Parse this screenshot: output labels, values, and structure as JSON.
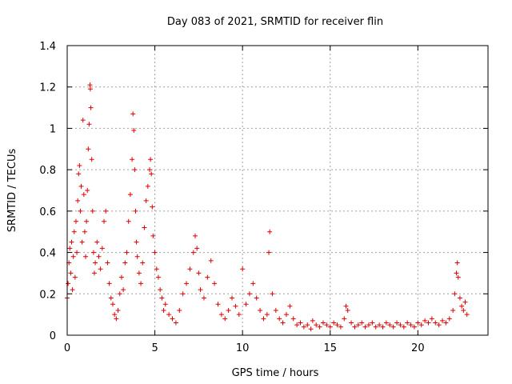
{
  "chart_data": {
    "type": "scatter",
    "title": "Day 083 of 2021, SRMTID for receiver flin",
    "xlabel": "GPS time / hours",
    "ylabel": "SRMTID / TECUs",
    "xlim": [
      0,
      24
    ],
    "ylim": [
      0,
      1.4
    ],
    "xticks": [
      0,
      5,
      10,
      15,
      20
    ],
    "xtick_labels": [
      "0",
      "5",
      "10",
      "15",
      "20"
    ],
    "yticks": [
      0,
      0.2,
      0.4,
      0.6,
      0.8,
      1.0,
      1.2,
      1.4
    ],
    "ytick_labels": [
      "0",
      "0.2",
      "0.4",
      "0.6",
      "0.8",
      "1",
      "1.2",
      "1.4"
    ],
    "grid": true,
    "marker": "+",
    "marker_color": "#e00000",
    "series": [
      {
        "name": "SRMTID",
        "points": [
          [
            0.0,
            0.18
          ],
          [
            0.05,
            0.25
          ],
          [
            0.1,
            0.35
          ],
          [
            0.15,
            0.42
          ],
          [
            0.2,
            0.3
          ],
          [
            0.25,
            0.45
          ],
          [
            0.3,
            0.22
          ],
          [
            0.35,
            0.38
          ],
          [
            0.4,
            0.5
          ],
          [
            0.45,
            0.28
          ],
          [
            0.5,
            0.55
          ],
          [
            0.55,
            0.4
          ],
          [
            0.6,
            0.65
          ],
          [
            0.65,
            0.78
          ],
          [
            0.7,
            0.82
          ],
          [
            0.75,
            0.6
          ],
          [
            0.8,
            0.72
          ],
          [
            0.85,
            0.45
          ],
          [
            0.9,
            1.04
          ],
          [
            0.95,
            0.68
          ],
          [
            1.0,
            0.5
          ],
          [
            1.05,
            0.38
          ],
          [
            1.1,
            0.55
          ],
          [
            1.15,
            0.7
          ],
          [
            1.2,
            0.9
          ],
          [
            1.25,
            1.02
          ],
          [
            1.3,
            1.21
          ],
          [
            1.32,
            1.19
          ],
          [
            1.35,
            1.1
          ],
          [
            1.4,
            0.85
          ],
          [
            1.45,
            0.6
          ],
          [
            1.5,
            0.4
          ],
          [
            1.55,
            0.3
          ],
          [
            1.6,
            0.35
          ],
          [
            1.7,
            0.45
          ],
          [
            1.8,
            0.38
          ],
          [
            1.9,
            0.32
          ],
          [
            2.0,
            0.42
          ],
          [
            2.1,
            0.55
          ],
          [
            2.2,
            0.6
          ],
          [
            2.3,
            0.35
          ],
          [
            2.4,
            0.25
          ],
          [
            2.5,
            0.18
          ],
          [
            2.6,
            0.15
          ],
          [
            2.7,
            0.1
          ],
          [
            2.8,
            0.08
          ],
          [
            2.9,
            0.12
          ],
          [
            3.0,
            0.2
          ],
          [
            3.1,
            0.28
          ],
          [
            3.2,
            0.22
          ],
          [
            3.3,
            0.35
          ],
          [
            3.4,
            0.4
          ],
          [
            3.5,
            0.55
          ],
          [
            3.6,
            0.68
          ],
          [
            3.7,
            0.85
          ],
          [
            3.75,
            1.07
          ],
          [
            3.8,
            0.99
          ],
          [
            3.85,
            0.8
          ],
          [
            3.9,
            0.6
          ],
          [
            3.95,
            0.45
          ],
          [
            4.0,
            0.38
          ],
          [
            4.1,
            0.3
          ],
          [
            4.2,
            0.25
          ],
          [
            4.3,
            0.35
          ],
          [
            4.4,
            0.52
          ],
          [
            4.5,
            0.65
          ],
          [
            4.6,
            0.72
          ],
          [
            4.7,
            0.8
          ],
          [
            4.75,
            0.85
          ],
          [
            4.8,
            0.78
          ],
          [
            4.85,
            0.62
          ],
          [
            4.9,
            0.48
          ],
          [
            5.0,
            0.4
          ],
          [
            5.1,
            0.32
          ],
          [
            5.2,
            0.28
          ],
          [
            5.3,
            0.22
          ],
          [
            5.4,
            0.18
          ],
          [
            5.5,
            0.12
          ],
          [
            5.6,
            0.15
          ],
          [
            5.8,
            0.1
          ],
          [
            6.0,
            0.08
          ],
          [
            6.2,
            0.06
          ],
          [
            6.4,
            0.12
          ],
          [
            6.6,
            0.2
          ],
          [
            6.8,
            0.25
          ],
          [
            7.0,
            0.32
          ],
          [
            7.2,
            0.4
          ],
          [
            7.3,
            0.48
          ],
          [
            7.4,
            0.42
          ],
          [
            7.5,
            0.3
          ],
          [
            7.6,
            0.22
          ],
          [
            7.8,
            0.18
          ],
          [
            8.0,
            0.28
          ],
          [
            8.2,
            0.36
          ],
          [
            8.4,
            0.25
          ],
          [
            8.6,
            0.15
          ],
          [
            8.8,
            0.1
          ],
          [
            9.0,
            0.08
          ],
          [
            9.2,
            0.12
          ],
          [
            9.4,
            0.18
          ],
          [
            9.6,
            0.14
          ],
          [
            9.8,
            0.1
          ],
          [
            10.0,
            0.32
          ],
          [
            10.2,
            0.15
          ],
          [
            10.4,
            0.2
          ],
          [
            10.6,
            0.25
          ],
          [
            10.8,
            0.18
          ],
          [
            11.0,
            0.12
          ],
          [
            11.2,
            0.08
          ],
          [
            11.4,
            0.1
          ],
          [
            11.5,
            0.4
          ],
          [
            11.55,
            0.5
          ],
          [
            11.7,
            0.2
          ],
          [
            11.9,
            0.12
          ],
          [
            12.1,
            0.08
          ],
          [
            12.3,
            0.06
          ],
          [
            12.5,
            0.1
          ],
          [
            12.7,
            0.14
          ],
          [
            12.9,
            0.08
          ],
          [
            13.1,
            0.05
          ],
          [
            13.3,
            0.06
          ],
          [
            13.5,
            0.04
          ],
          [
            13.7,
            0.05
          ],
          [
            13.9,
            0.03
          ],
          [
            14.0,
            0.07
          ],
          [
            14.2,
            0.05
          ],
          [
            14.4,
            0.04
          ],
          [
            14.6,
            0.06
          ],
          [
            14.8,
            0.05
          ],
          [
            15.0,
            0.04
          ],
          [
            15.2,
            0.06
          ],
          [
            15.4,
            0.05
          ],
          [
            15.6,
            0.04
          ],
          [
            15.8,
            0.08
          ],
          [
            15.9,
            0.14
          ],
          [
            16.0,
            0.12
          ],
          [
            16.2,
            0.06
          ],
          [
            16.4,
            0.04
          ],
          [
            16.6,
            0.05
          ],
          [
            16.8,
            0.06
          ],
          [
            17.0,
            0.04
          ],
          [
            17.2,
            0.05
          ],
          [
            17.4,
            0.06
          ],
          [
            17.6,
            0.04
          ],
          [
            17.8,
            0.05
          ],
          [
            18.0,
            0.04
          ],
          [
            18.2,
            0.06
          ],
          [
            18.4,
            0.05
          ],
          [
            18.6,
            0.04
          ],
          [
            18.8,
            0.06
          ],
          [
            19.0,
            0.05
          ],
          [
            19.2,
            0.04
          ],
          [
            19.4,
            0.06
          ],
          [
            19.6,
            0.05
          ],
          [
            19.8,
            0.04
          ],
          [
            20.0,
            0.06
          ],
          [
            20.2,
            0.05
          ],
          [
            20.4,
            0.07
          ],
          [
            20.6,
            0.06
          ],
          [
            20.8,
            0.08
          ],
          [
            21.0,
            0.06
          ],
          [
            21.2,
            0.05
          ],
          [
            21.4,
            0.07
          ],
          [
            21.6,
            0.06
          ],
          [
            21.8,
            0.08
          ],
          [
            22.0,
            0.12
          ],
          [
            22.1,
            0.2
          ],
          [
            22.2,
            0.3
          ],
          [
            22.25,
            0.35
          ],
          [
            22.3,
            0.28
          ],
          [
            22.4,
            0.18
          ],
          [
            22.5,
            0.14
          ],
          [
            22.6,
            0.12
          ],
          [
            22.7,
            0.16
          ],
          [
            22.8,
            0.1
          ]
        ]
      }
    ]
  }
}
